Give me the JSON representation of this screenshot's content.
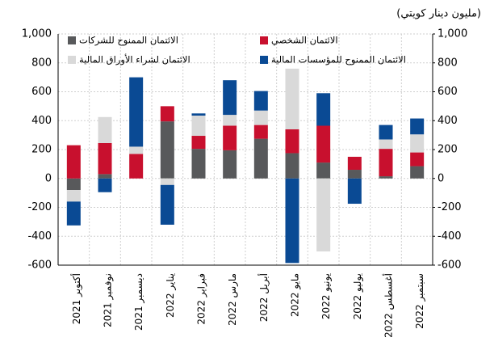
{
  "chart_data": {
    "type": "stacked_bar",
    "unit_label": "(مليون دينار كويتي)",
    "categories": [
      "أكتوبر 2021",
      "نوفمبر 2021",
      "ديسمبر 2021",
      "يناير 2022",
      "فبراير 2022",
      "مارس 2022",
      "أبريل 2022",
      "مايو 2022",
      "يونيو 2022",
      "يوليو 2022",
      "أغسطس 2022",
      "سبتمبر 2022"
    ],
    "series": [
      {
        "name": "الائتمان الممنوح للشركات",
        "color": "#58595b",
        "values": [
          -80,
          30,
          0,
          395,
          205,
          195,
          275,
          175,
          110,
          60,
          15,
          85
        ]
      },
      {
        "name": "الائتمان الشخصي",
        "color": "#c8102e",
        "values": [
          230,
          215,
          170,
          105,
          90,
          170,
          95,
          165,
          255,
          90,
          190,
          95
        ]
      },
      {
        "name": "الائتمان لشراء الأوراق المالية",
        "color": "#d9d9d9",
        "values": [
          -80,
          180,
          50,
          -45,
          140,
          75,
          100,
          420,
          -505,
          0,
          65,
          125
        ]
      },
      {
        "name": "الائتمان الممنوح للمؤسسات المالية",
        "color": "#0a4a94",
        "values": [
          -165,
          -95,
          480,
          -275,
          15,
          240,
          135,
          -585,
          225,
          -175,
          100,
          110
        ]
      }
    ],
    "ylim": [
      -600,
      1000
    ],
    "yticks": [
      -600,
      -400,
      -200,
      0,
      200,
      400,
      600,
      800,
      {
        "value": 1000,
        "label": "1,000"
      }
    ],
    "y2lim": [
      -600,
      1000
    ],
    "y2ticks": [
      -600,
      -400,
      -200,
      0,
      200,
      400,
      600,
      800,
      {
        "value": 1000,
        "label": "1,000"
      }
    ],
    "grid": true
  }
}
